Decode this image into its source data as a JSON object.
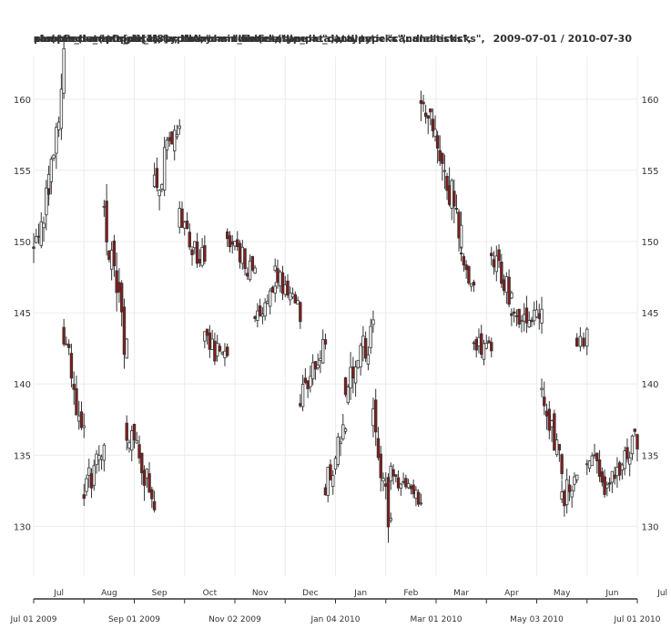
{
  "header": {
    "title_layers": [
      "xts(candle_data[, 1:4], order.by = index(candle_data)), type = \"candlesticks\",",
      "sample_data$Open[1:8] = NA;  chart_Series(sample_data, type = \"candlesticks\",",
      "chartSeries(sample_data, theme = \"white\", type = \"candlesticks\",",
      "plot(xts(sample_data), type = \"candlesticks\","
    ],
    "date_range": "2009-07-01 / 2010-07-30"
  },
  "chart_data": {
    "type": "candlestick",
    "title": "",
    "xlabel": "",
    "ylabel": "",
    "ylim": [
      126.5,
      163.0
    ],
    "y_ticks": [
      130,
      135,
      140,
      145,
      150,
      155,
      160
    ],
    "grid": true,
    "colors": {
      "up": "#ffffff",
      "down": "#8b1a1a",
      "wick": "#333333",
      "grid": "#ececec",
      "axis": "#333333"
    },
    "month_labels": [
      "Jul",
      "Aug",
      "Sep",
      "Oct",
      "Nov",
      "Dec",
      "Jan",
      "Feb",
      "Mar",
      "Apr",
      "May",
      "Jun",
      "Jul"
    ],
    "date_labels": [
      "Jul 01 2009",
      "Sep 01 2009",
      "Nov 02 2009",
      "Jan 04 2010",
      "Mar 01 2010",
      "May 03 2010",
      "Jul 01 2010"
    ],
    "segments": [
      {
        "from_month": 0.0,
        "to_month": 0.3,
        "start": 149.5,
        "end": 153.5,
        "amp": 2.5
      },
      {
        "from_month": 0.3,
        "to_month": 0.6,
        "start": 153.5,
        "end": 162.5,
        "amp": 2.5
      },
      {
        "from_month": 0.6,
        "to_month": 1.0,
        "start": 144.0,
        "end": 136.0,
        "amp": 2.5
      },
      {
        "from_month": 1.0,
        "to_month": 1.4,
        "start": 132.5,
        "end": 135.5,
        "amp": 2.0
      },
      {
        "from_month": 1.4,
        "to_month": 1.85,
        "start": 152.0,
        "end": 142.0,
        "amp": 3.0
      },
      {
        "from_month": 1.85,
        "to_month": 2.4,
        "start": 137.0,
        "end": 132.0,
        "amp": 2.5
      },
      {
        "from_month": 2.4,
        "to_month": 2.9,
        "start": 153.5,
        "end": 159.0,
        "amp": 2.5
      },
      {
        "from_month": 2.9,
        "to_month": 3.4,
        "start": 151.5,
        "end": 148.5,
        "amp": 2.0
      },
      {
        "from_month": 3.4,
        "to_month": 3.85,
        "start": 143.0,
        "end": 141.5,
        "amp": 1.5
      },
      {
        "from_month": 3.85,
        "to_month": 4.4,
        "start": 150.5,
        "end": 147.5,
        "amp": 1.5
      },
      {
        "from_month": 4.4,
        "to_month": 4.8,
        "start": 144.5,
        "end": 146.5,
        "amp": 1.5
      },
      {
        "from_month": 4.8,
        "to_month": 5.3,
        "start": 148.0,
        "end": 145.0,
        "amp": 1.5
      },
      {
        "from_month": 5.3,
        "to_month": 5.8,
        "start": 139.0,
        "end": 142.5,
        "amp": 2.0
      },
      {
        "from_month": 5.8,
        "to_month": 6.2,
        "start": 133.0,
        "end": 137.0,
        "amp": 2.0
      },
      {
        "from_month": 6.2,
        "to_month": 6.75,
        "start": 140.0,
        "end": 143.5,
        "amp": 2.5
      },
      {
        "from_month": 6.75,
        "to_month": 7.1,
        "start": 137.5,
        "end": 130.0,
        "amp": 2.5
      },
      {
        "from_month": 7.1,
        "to_month": 7.7,
        "start": 133.5,
        "end": 132.0,
        "amp": 1.5
      },
      {
        "from_month": 7.7,
        "to_month": 8.5,
        "start": 160.0,
        "end": 151.0,
        "amp": 3.0
      },
      {
        "from_month": 8.5,
        "to_month": 8.75,
        "start": 149.0,
        "end": 147.0,
        "amp": 1.5
      },
      {
        "from_month": 8.75,
        "to_month": 9.1,
        "start": 143.0,
        "end": 142.0,
        "amp": 1.5
      },
      {
        "from_month": 9.1,
        "to_month": 9.5,
        "start": 149.0,
        "end": 146.0,
        "amp": 2.0
      },
      {
        "from_month": 9.5,
        "to_month": 10.1,
        "start": 145.0,
        "end": 145.5,
        "amp": 2.0
      },
      {
        "from_month": 10.1,
        "to_month": 10.5,
        "start": 140.0,
        "end": 134.0,
        "amp": 2.5
      },
      {
        "from_month": 10.5,
        "to_month": 10.8,
        "start": 132.0,
        "end": 133.5,
        "amp": 2.0
      },
      {
        "from_month": 10.8,
        "to_month": 11.0,
        "start": 143.0,
        "end": 143.5,
        "amp": 1.5
      },
      {
        "from_month": 11.0,
        "to_month": 11.35,
        "start": 134.5,
        "end": 133.5,
        "amp": 2.0
      },
      {
        "from_month": 11.35,
        "to_month": 12.0,
        "start": 133.0,
        "end": 136.0,
        "amp": 2.0
      }
    ]
  }
}
